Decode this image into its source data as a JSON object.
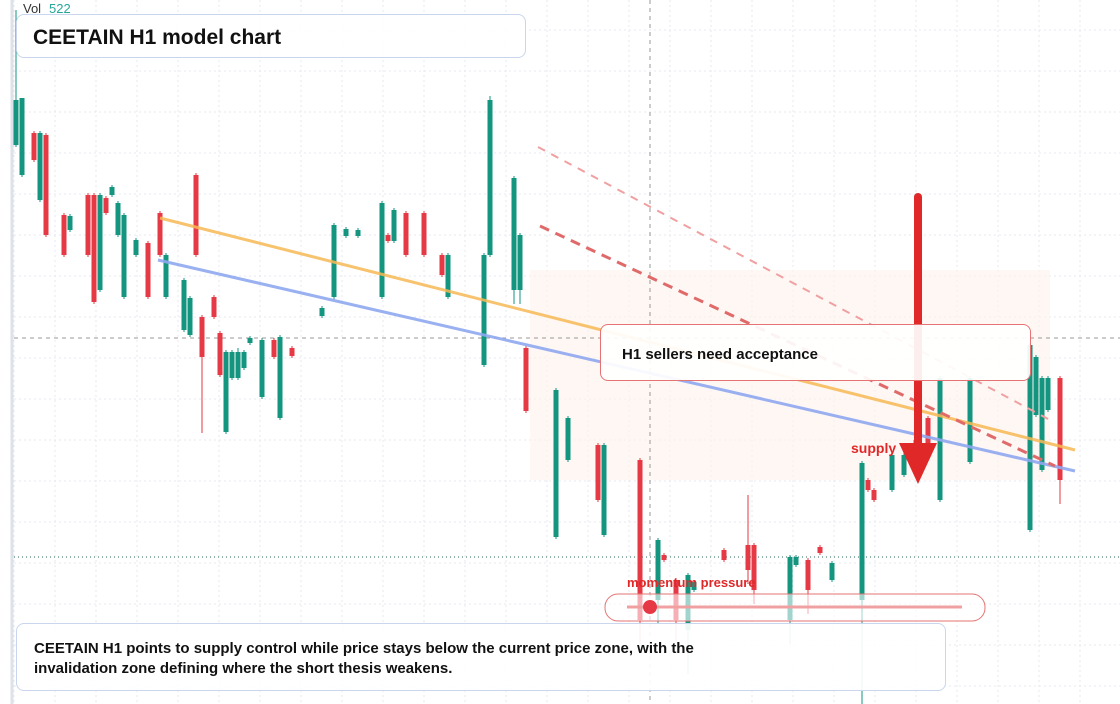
{
  "header": {
    "vol_label": "Vol",
    "vol_value": 522,
    "title": "CEETAIN H1 model chart"
  },
  "chart_data": {
    "type": "candlestick",
    "up_color": "#13957f",
    "down_color": "#e63946",
    "xlim": [
      0,
      180
    ],
    "ylim": [
      0,
      704
    ],
    "x": [
      0,
      1,
      3,
      4,
      5,
      8,
      9,
      12,
      13,
      14,
      15,
      16,
      17,
      18,
      20,
      22,
      24,
      25,
      28,
      29,
      30,
      31,
      33,
      34,
      35,
      36,
      37,
      38,
      39,
      41,
      43,
      44,
      46,
      51,
      53,
      55,
      57,
      61,
      62,
      63,
      65,
      68,
      71,
      72,
      78,
      79,
      83,
      84,
      85,
      90,
      92,
      97,
      98,
      104,
      107,
      108,
      110,
      112,
      113,
      118,
      122,
      123,
      129,
      130,
      132,
      134,
      136,
      141,
      142,
      143,
      146,
      148,
      150,
      152,
      154,
      159,
      169,
      170,
      171,
      172,
      174
    ],
    "open": [
      559,
      529,
      571,
      504,
      569,
      489,
      474,
      509,
      509,
      414,
      506,
      509,
      469,
      407,
      449,
      461,
      491,
      407,
      374,
      369,
      529,
      387,
      407,
      371,
      272,
      326,
      326,
      336,
      361,
      307,
      364,
      286,
      356,
      388,
      407,
      468,
      468,
      407,
      469,
      463,
      491,
      491,
      449,
      407,
      339,
      449,
      414,
      414,
      356,
      167,
      244,
      259,
      169,
      244,
      104,
      149,
      124,
      74,
      114,
      154,
      159,
      159,
      84,
      139,
      144,
      157,
      124,
      104,
      224,
      214,
      214,
      229,
      264,
      286,
      204,
      242,
      174,
      289,
      234,
      294,
      326
    ],
    "close": [
      604,
      606,
      544,
      571,
      469,
      449,
      488,
      449,
      402,
      509,
      491,
      517,
      501,
      489,
      464,
      407,
      449,
      449,
      424,
      406,
      449,
      347,
      387,
      329,
      352,
      352,
      352,
      352,
      366,
      364,
      347,
      367,
      348,
      396,
      479,
      475,
      474,
      501,
      463,
      494,
      449,
      449,
      429,
      449,
      449,
      604,
      526,
      469,
      293,
      314,
      286,
      204,
      259,
      84,
      164,
      144,
      84,
      129,
      122,
      144,
      134,
      114,
      147,
      147,
      114,
      151,
      141,
      241,
      214,
      204,
      249,
      249,
      234,
      254,
      326,
      326,
      359,
      347,
      326,
      326,
      224
    ],
    "high": [
      694,
      606,
      573,
      573,
      571,
      491,
      490,
      511,
      511,
      511,
      508,
      519,
      503,
      491,
      466,
      463,
      493,
      451,
      426,
      408,
      531,
      389,
      409,
      373,
      354,
      354,
      356,
      354,
      368,
      366,
      366,
      369,
      358,
      398,
      481,
      477,
      476,
      503,
      471,
      496,
      493,
      493,
      451,
      451,
      451,
      608,
      528,
      471,
      358,
      316,
      288,
      261,
      261,
      246,
      166,
      151,
      126,
      131,
      124,
      156,
      209,
      161,
      149,
      149,
      146,
      159,
      143,
      243,
      226,
      216,
      251,
      251,
      266,
      288,
      328,
      328,
      361,
      349,
      328,
      328,
      328
    ],
    "low": [
      557,
      527,
      542,
      502,
      467,
      447,
      472,
      447,
      400,
      412,
      489,
      507,
      467,
      405,
      447,
      405,
      447,
      405,
      372,
      367,
      447,
      271,
      385,
      327,
      270,
      324,
      324,
      334,
      359,
      305,
      345,
      284,
      346,
      386,
      405,
      466,
      466,
      405,
      461,
      461,
      447,
      447,
      427,
      405,
      337,
      447,
      400,
      400,
      291,
      165,
      242,
      202,
      167,
      60,
      80,
      142,
      60,
      30,
      112,
      142,
      120,
      100,
      60,
      137,
      90,
      149,
      122,
      0,
      212,
      202,
      212,
      227,
      232,
      252,
      202,
      240,
      172,
      287,
      232,
      292,
      200
    ]
  },
  "annotations": {
    "callout": "H1 sellers need acceptance",
    "supply": "supply",
    "momentum": "momentum pressure"
  },
  "summary": "CEETAIN H1 points to supply control while price stays below the current price zone, with the invalidation zone defining where the short thesis weakens."
}
